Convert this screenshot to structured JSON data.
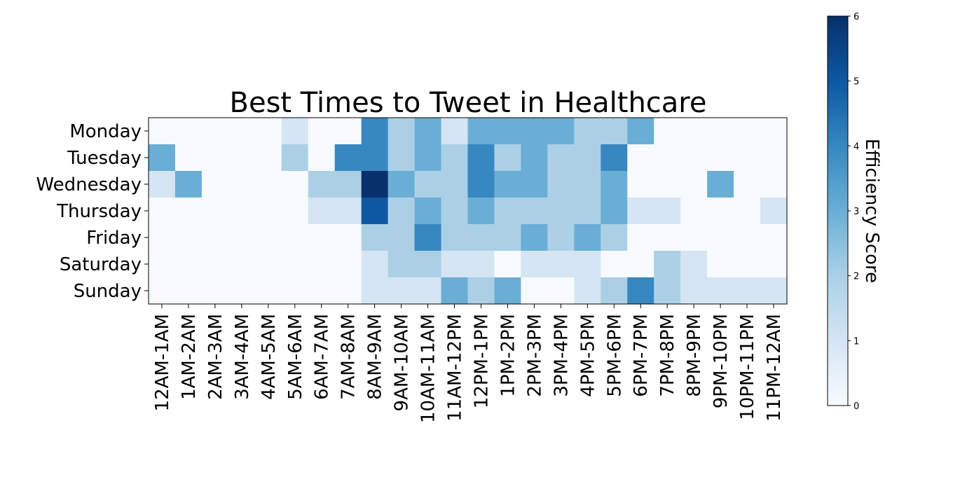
{
  "chart_data": {
    "type": "heatmap",
    "title": "Best Times to Tweet in Healthcare",
    "rows": [
      "Monday",
      "Tuesday",
      "Wednesday",
      "Thursday",
      "Friday",
      "Saturday",
      "Sunday"
    ],
    "columns": [
      "12AM-1AM",
      "1AM-2AM",
      "2AM-3AM",
      "3AM-4AM",
      "4AM-5AM",
      "5AM-6AM",
      "6AM-7AM",
      "7AM-8AM",
      "8AM-9AM",
      "9AM-10AM",
      "10AM-11AM",
      "11AM-12PM",
      "12PM-1PM",
      "1PM-2PM",
      "2PM-3PM",
      "3PM-4PM",
      "4PM-5PM",
      "5PM-6PM",
      "6PM-7PM",
      "7PM-8PM",
      "8PM-9PM",
      "9PM-10PM",
      "10PM-11PM",
      "11PM-12AM"
    ],
    "values": [
      [
        0,
        0,
        0,
        0,
        0,
        1,
        0,
        0,
        4,
        2,
        3,
        1,
        3,
        3,
        3,
        3,
        2,
        2,
        3,
        0,
        0,
        0,
        0,
        0
      ],
      [
        3,
        0,
        0,
        0,
        0,
        2,
        0,
        4,
        4,
        2,
        3,
        2,
        4,
        2,
        3,
        2,
        2,
        4,
        0,
        0,
        0,
        0,
        0,
        0
      ],
      [
        1,
        3,
        0,
        0,
        0,
        0,
        2,
        2,
        6,
        3,
        2,
        2,
        4,
        3,
        3,
        2,
        2,
        3,
        0,
        0,
        0,
        3,
        0,
        0
      ],
      [
        0,
        0,
        0,
        0,
        0,
        0,
        1,
        1,
        5,
        2,
        3,
        2,
        3,
        2,
        2,
        2,
        2,
        3,
        1,
        1,
        0,
        0,
        0,
        1
      ],
      [
        0,
        0,
        0,
        0,
        0,
        0,
        0,
        0,
        2,
        2,
        4,
        2,
        2,
        2,
        3,
        2,
        3,
        2,
        0,
        0,
        0,
        0,
        0,
        0
      ],
      [
        0,
        0,
        0,
        0,
        0,
        0,
        0,
        0,
        1,
        2,
        2,
        1,
        1,
        0,
        1,
        1,
        1,
        0,
        0,
        2,
        1,
        0,
        0,
        0
      ],
      [
        0,
        0,
        0,
        0,
        0,
        0,
        0,
        0,
        1,
        1,
        1,
        3,
        2,
        3,
        0,
        0,
        1,
        2,
        4,
        2,
        1,
        1,
        1,
        1
      ]
    ],
    "colorbar": {
      "label": "Efficiency Score",
      "range": [
        0,
        6
      ],
      "ticks": [
        "0",
        "1",
        "2",
        "3",
        "4",
        "5",
        "6"
      ],
      "colormap": "Blues"
    },
    "colors": {
      "scale": [
        "#f7fbff",
        "#d5e5f4",
        "#abd0e6",
        "#6aaed6",
        "#3787c0",
        "#0d58a1",
        "#08306b"
      ]
    }
  }
}
